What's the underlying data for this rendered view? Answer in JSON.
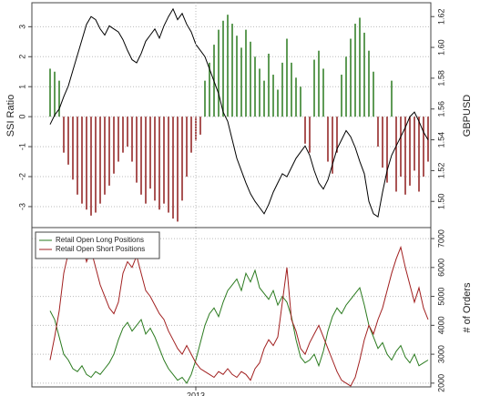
{
  "chart_data": [
    {
      "type": "bar",
      "ylabel": "SSI Ratio",
      "y2label": "GBPUSD",
      "values": [
        1.6,
        1.5,
        1.2,
        -1.2,
        -1.6,
        -2.1,
        -2.6,
        -2.9,
        -3.1,
        -3.3,
        -3.2,
        -2.9,
        -2.6,
        -2.3,
        -1.9,
        -1.5,
        -1.2,
        -1.0,
        -1.5,
        -2.2,
        -2.6,
        -2.9,
        -2.4,
        -2.8,
        -3.1,
        -2.9,
        -3.2,
        -3.4,
        -3.5,
        -2.8,
        -2.0,
        -1.2,
        -0.8,
        -0.6,
        1.2,
        1.8,
        2.4,
        2.9,
        3.2,
        3.4,
        3.1,
        2.7,
        2.3,
        2.9,
        2.5,
        2.0,
        1.6,
        1.2,
        2.1,
        1.4,
        0.9,
        1.8,
        2.6,
        1.8,
        1.3,
        1.0,
        -0.9,
        -1.2,
        1.9,
        2.2,
        1.6,
        -1.5,
        -1.9,
        -1.2,
        1.4,
        2.0,
        2.6,
        3.1,
        3.3,
        2.8,
        2.2,
        1.5,
        -1.0,
        -1.7,
        -2.2,
        1.2,
        -2.5,
        -2.0,
        -2.6,
        -2.3,
        -1.8,
        -2.5,
        -2.0,
        -1.5
      ],
      "positive_color": "#2a7a1e",
      "negative_color": "#8e1b1b",
      "series": [
        {
          "axis": "y2",
          "color": "#000000",
          "values": [
            1.55,
            1.556,
            1.56,
            1.568,
            1.575,
            1.585,
            1.595,
            1.605,
            1.615,
            1.62,
            1.618,
            1.612,
            1.608,
            1.614,
            1.612,
            1.61,
            1.605,
            1.598,
            1.592,
            1.59,
            1.596,
            1.604,
            1.608,
            1.612,
            1.606,
            1.614,
            1.62,
            1.625,
            1.618,
            1.622,
            1.615,
            1.61,
            1.602,
            1.598,
            1.594,
            1.586,
            1.578,
            1.57,
            1.558,
            1.552,
            1.54,
            1.528,
            1.52,
            1.512,
            1.505,
            1.5,
            1.496,
            1.492,
            1.498,
            1.506,
            1.512,
            1.518,
            1.516,
            1.522,
            1.528,
            1.532,
            1.536,
            1.53,
            1.52,
            1.512,
            1.508,
            1.514,
            1.524,
            1.534,
            1.54,
            1.546,
            1.542,
            1.535,
            1.526,
            1.518,
            1.5,
            1.492,
            1.49,
            1.506,
            1.52,
            1.53,
            1.536,
            1.542,
            1.548,
            1.555,
            1.558,
            1.552,
            1.545,
            1.54
          ]
        }
      ],
      "ylim": [
        -3.7,
        3.8
      ],
      "yticks": [
        -3,
        -2,
        -1,
        0,
        1,
        2,
        3
      ],
      "y2lim": [
        1.483,
        1.629
      ],
      "y2ticks": [
        {
          "value": 1.5,
          "label": "1.50"
        },
        1.52,
        1.54,
        1.56,
        1.58,
        {
          "value": 1.6,
          "label": "1.60"
        },
        1.62
      ],
      "grid": true
    },
    {
      "type": "line",
      "ylabel": "# of Orders",
      "categories": [
        null,
        null,
        null,
        null,
        null,
        null,
        null,
        null,
        null,
        null,
        null,
        null,
        null,
        null,
        null,
        null,
        null,
        null,
        null,
        null,
        null,
        null,
        null,
        null,
        null,
        null,
        null,
        null,
        null,
        null,
        null,
        null,
        "2013",
        null,
        null,
        null,
        null,
        null,
        null,
        null,
        null,
        null,
        null,
        null,
        null,
        null,
        null,
        null,
        null,
        null,
        null,
        null,
        null,
        null,
        null,
        null,
        null,
        null,
        null,
        null,
        null,
        null,
        null,
        null,
        null,
        null,
        null,
        null,
        null,
        null,
        null,
        null,
        null,
        null,
        null,
        null,
        null,
        null,
        null,
        null,
        null,
        null,
        null,
        null
      ],
      "series": [
        {
          "name": "Retail Open Long Positions",
          "color": "#2a7a1e",
          "values": [
            4500,
            4200,
            3600,
            3000,
            2800,
            2500,
            2400,
            2600,
            2300,
            2200,
            2400,
            2300,
            2500,
            2700,
            3000,
            3500,
            3900,
            4100,
            3800,
            4000,
            4200,
            3700,
            3900,
            3600,
            3200,
            2800,
            2500,
            2300,
            2100,
            2200,
            2000,
            2300,
            2800,
            3400,
            4000,
            4400,
            4600,
            4300,
            4800,
            5200,
            5400,
            5600,
            5200,
            5800,
            5500,
            5900,
            5300,
            5100,
            4900,
            5200,
            4700,
            5000,
            4800,
            4300,
            3500,
            2900,
            2700,
            2800,
            3000,
            2600,
            3100,
            3800,
            4300,
            4600,
            4400,
            4700,
            4900,
            5100,
            5300,
            4700,
            4000,
            3600,
            3200,
            3400,
            3000,
            2800,
            3100,
            3300,
            2900,
            2700,
            3000,
            2600,
            2700,
            2800
          ]
        },
        {
          "name": "Retail Open Short Positions",
          "color": "#a11f1f",
          "values": [
            2800,
            3600,
            4500,
            5800,
            6500,
            6800,
            6400,
            6900,
            6200,
            6600,
            6000,
            5400,
            5000,
            4600,
            4400,
            4800,
            5800,
            6200,
            6000,
            6400,
            5800,
            5200,
            5000,
            4700,
            4400,
            4200,
            3800,
            3500,
            3200,
            3000,
            3300,
            3000,
            2700,
            2500,
            2400,
            2300,
            2200,
            2400,
            2300,
            2500,
            2300,
            2200,
            2400,
            2300,
            2100,
            2500,
            2700,
            3200,
            3500,
            3300,
            3600,
            4800,
            6000,
            4200,
            3800,
            3200,
            3000,
            3400,
            3700,
            4000,
            3600,
            3200,
            2800,
            2400,
            2100,
            2000,
            1900,
            2200,
            2800,
            3500,
            4000,
            3700,
            4200,
            4600,
            5200,
            5800,
            6300,
            6700,
            6000,
            5400,
            4800,
            5300,
            4600,
            4200
          ]
        }
      ],
      "ylim": [
        1870,
        7380
      ],
      "yticks": [
        2000,
        3000,
        4000,
        5000,
        6000,
        7000
      ],
      "yaxis": "right",
      "legend": "top-left",
      "grid": true
    }
  ]
}
